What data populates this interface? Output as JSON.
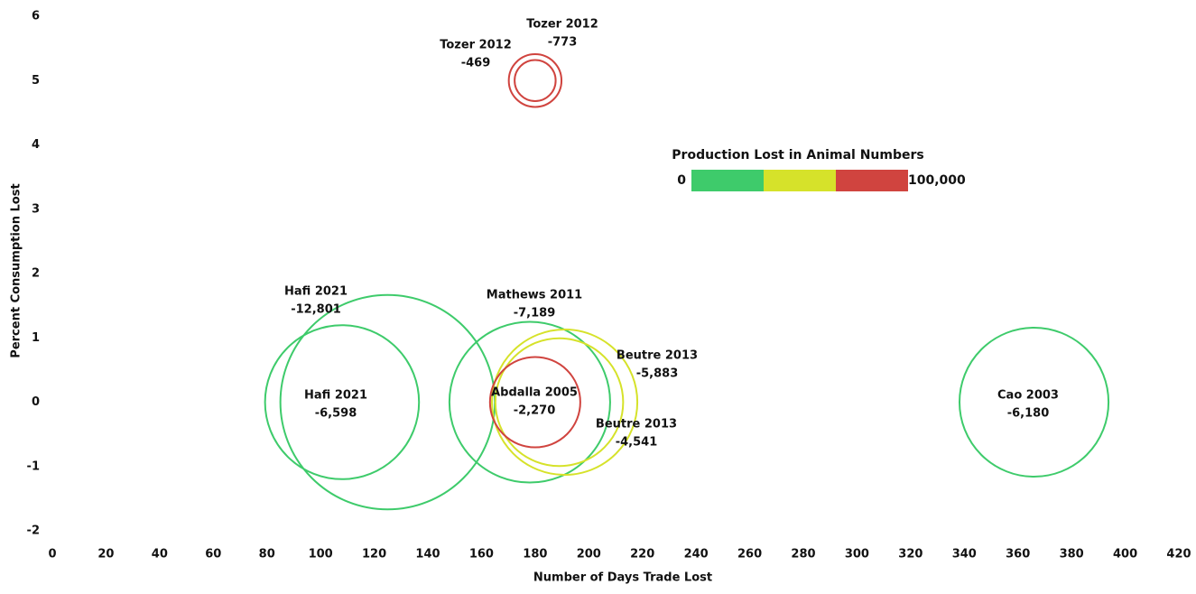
{
  "chart_data": {
    "type": "bubble",
    "x_label": "Number of Days Trade Lost",
    "y_label": "Percent Consumption Lost",
    "xlim": [
      0,
      420
    ],
    "ylim": [
      -2,
      6
    ],
    "xticks": [
      0,
      20,
      40,
      60,
      80,
      100,
      120,
      140,
      160,
      180,
      200,
      220,
      240,
      260,
      280,
      300,
      320,
      340,
      360,
      380,
      400,
      420
    ],
    "yticks": [
      -2,
      -1,
      0,
      1,
      2,
      3,
      4,
      5,
      6
    ],
    "grid": false,
    "names": [
      "Tozer 2012",
      "Tozer 2012",
      "Hafi 2021",
      "Hafi 2021",
      "Mathews 2011",
      "Beutre 2013",
      "Beutre 2013",
      "Abdalla 2005",
      "Cao 2003"
    ],
    "x": [
      180,
      180,
      125,
      108,
      178,
      191,
      189,
      180,
      366
    ],
    "values": [
      5,
      5,
      0,
      0,
      0,
      0,
      0,
      0,
      0
    ],
    "sizes": [
      -773,
      -469,
      -12801,
      -6598,
      -7189,
      -5883,
      -4541,
      -2270,
      -6180
    ],
    "value_labels": [
      "-773",
      "-469",
      "-12,801",
      "-6,598",
      "-7,189",
      "-5,883",
      "-4,541",
      "-2,270",
      "-6,180"
    ],
    "colors": [
      "#d0443f",
      "#d0443f",
      "#3ecb6b",
      "#3ecb6b",
      "#3ecb6b",
      "#d6e22a",
      "#d6e22a",
      "#d0443f",
      "#3ecb6b"
    ],
    "legend": {
      "title": "Production Lost in Animal Numbers",
      "min": 0,
      "max": {
        "value": 100000,
        "label": "100,000"
      },
      "colors": [
        "#3ecb6b",
        "#d6e22a",
        "#d0443f"
      ]
    }
  }
}
